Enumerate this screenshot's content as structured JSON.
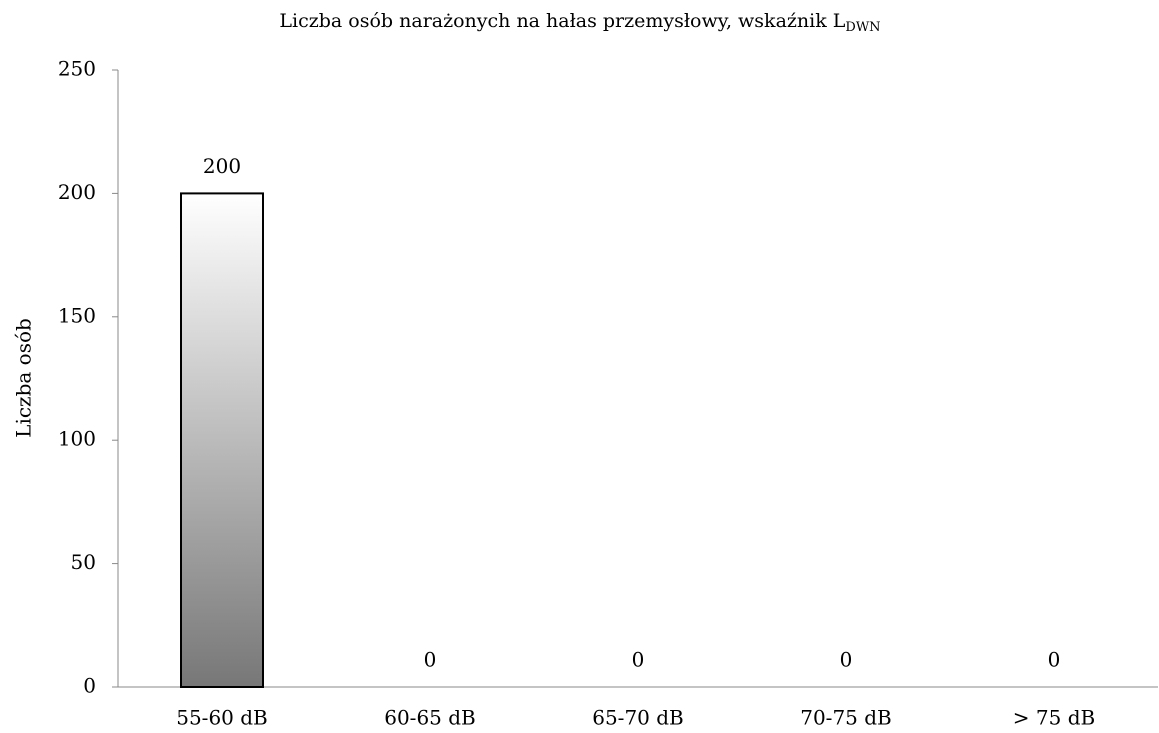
{
  "chart_data": {
    "type": "bar",
    "title": "Liczba osób narażonych na hałas przemysłowy, wskaźnik L",
    "title_subscript": "DWN",
    "y_label": "Liczba osób",
    "categories": [
      "55-60 dB",
      "60-65 dB",
      "65-70 dB",
      "70-75 dB",
      "> 75 dB"
    ],
    "values": [
      200,
      0,
      0,
      0,
      0
    ],
    "ylim": [
      0,
      250
    ],
    "yticks": [
      0,
      50,
      100,
      150,
      200,
      250
    ],
    "grid": false,
    "color": [
      "#ffffff",
      "#777777"
    ]
  }
}
